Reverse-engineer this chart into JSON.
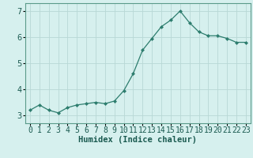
{
  "x": [
    0,
    1,
    2,
    3,
    4,
    5,
    6,
    7,
    8,
    9,
    10,
    11,
    12,
    13,
    14,
    15,
    16,
    17,
    18,
    19,
    20,
    21,
    22,
    23
  ],
  "y": [
    3.2,
    3.4,
    3.2,
    3.1,
    3.3,
    3.4,
    3.45,
    3.5,
    3.45,
    3.55,
    3.95,
    4.6,
    5.5,
    5.95,
    6.4,
    6.65,
    7.0,
    6.55,
    6.2,
    6.05,
    6.05,
    5.95,
    5.8,
    5.8
  ],
  "line_color": "#2d7d6e",
  "marker": "D",
  "marker_color": "#2d7d6e",
  "bg_color": "#d6f0ee",
  "grid_color": "#b8d8d5",
  "xlabel": "Humidex (Indice chaleur)",
  "xlabel_fontsize": 7.5,
  "xlabel_fontweight": "bold",
  "tick_fontsize": 7,
  "ylim": [
    2.7,
    7.3
  ],
  "yticks": [
    3,
    4,
    5,
    6,
    7
  ],
  "xlim": [
    -0.5,
    23.5
  ],
  "xtick_labels": [
    "0",
    "1",
    "2",
    "3",
    "4",
    "5",
    "6",
    "7",
    "8",
    "9",
    "10",
    "11",
    "12",
    "13",
    "14",
    "15",
    "16",
    "17",
    "18",
    "19",
    "20",
    "21",
    "22",
    "23"
  ]
}
